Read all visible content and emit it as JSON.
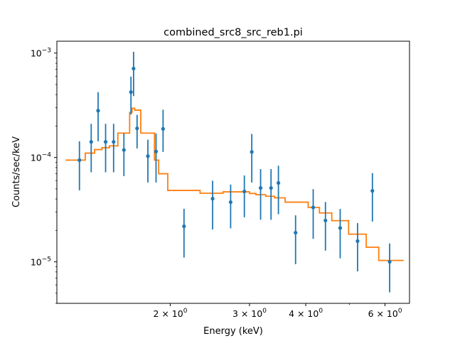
{
  "chart_data": {
    "type": "scatter",
    "title": "combined_src8_src_reb1.pi",
    "xlabel": "Energy (keV)",
    "ylabel": "Counts/sec/keV",
    "xscale": "log",
    "yscale": "log",
    "xlim": [
      1.12,
      6.8
    ],
    "ylim": [
      4e-06,
      0.0013
    ],
    "grid": false,
    "legend": "none",
    "x_ticks": [
      {
        "value": 2,
        "base": "2 × 10",
        "exp": "0"
      },
      {
        "value": 3,
        "base": "3 × 10",
        "exp": "0"
      },
      {
        "value": 4,
        "base": "4 × 10",
        "exp": "0"
      },
      {
        "value": 6,
        "base": "6 × 10",
        "exp": "0"
      }
    ],
    "y_ticks": [
      {
        "value": 0.001,
        "base": "10",
        "exp": "−3"
      },
      {
        "value": 0.0001,
        "base": "10",
        "exp": "−4"
      },
      {
        "value": 1e-05,
        "base": "10",
        "exp": "−5"
      }
    ],
    "colors": {
      "data": "#1f77b4",
      "model": "#ff7f0e"
    },
    "series": [
      {
        "kind": "errorbar",
        "points": [
          {
            "x": 1.257,
            "y": 9.43e-05,
            "ylo": 4.84e-05,
            "yhi": 0.000143
          },
          {
            "x": 1.335,
            "y": 0.000141,
            "ylo": 7.21e-05,
            "yhi": 0.00021
          },
          {
            "x": 1.383,
            "y": 0.000281,
            "ylo": 0.000143,
            "yhi": 0.000422
          },
          {
            "x": 1.437,
            "y": 0.000141,
            "ylo": 7.21e-05,
            "yhi": 0.00021
          },
          {
            "x": 1.497,
            "y": 0.000141,
            "ylo": 7.21e-05,
            "yhi": 0.00021
          },
          {
            "x": 1.578,
            "y": 0.000118,
            "ylo": 6.63e-05,
            "yhi": 0.00017
          },
          {
            "x": 1.636,
            "y": 0.000423,
            "ylo": 0.000258,
            "yhi": 0.000595
          },
          {
            "x": 1.658,
            "y": 0.000711,
            "ylo": 0.000387,
            "yhi": 0.00103
          },
          {
            "x": 1.688,
            "y": 0.00019,
            "ylo": 0.000122,
            "yhi": 0.000256
          },
          {
            "x": 1.784,
            "y": 0.000103,
            "ylo": 5.75e-05,
            "yhi": 0.000148
          },
          {
            "x": 1.86,
            "y": 0.000114,
            "ylo": 5.75e-05,
            "yhi": 0.00017
          },
          {
            "x": 1.928,
            "y": 0.000188,
            "ylo": 0.000113,
            "yhi": 0.000287
          },
          {
            "x": 2.146,
            "y": 2.19e-05,
            "ylo": 1.1e-05,
            "yhi": 3.22e-05
          },
          {
            "x": 2.484,
            "y": 4.03e-05,
            "ylo": 2.04e-05,
            "yhi": 5.99e-05
          },
          {
            "x": 2.724,
            "y": 3.73e-05,
            "ylo": 2.09e-05,
            "yhi": 5.5e-05
          },
          {
            "x": 2.922,
            "y": 4.72e-05,
            "ylo": 2.67e-05,
            "yhi": 6.72e-05
          },
          {
            "x": 3.035,
            "y": 0.000113,
            "ylo": 5.75e-05,
            "yhi": 0.000168
          },
          {
            "x": 3.175,
            "y": 5.1e-05,
            "ylo": 2.53e-05,
            "yhi": 7.74e-05
          },
          {
            "x": 3.349,
            "y": 5.1e-05,
            "ylo": 2.53e-05,
            "yhi": 7.74e-05
          },
          {
            "x": 3.478,
            "y": 5.7e-05,
            "ylo": 2.86e-05,
            "yhi": 8.33e-05
          },
          {
            "x": 3.797,
            "y": 1.9e-05,
            "ylo": 9.5e-06,
            "yhi": 2.79e-05
          },
          {
            "x": 4.155,
            "y": 3.32e-05,
            "ylo": 1.66e-05,
            "yhi": 4.97e-05
          },
          {
            "x": 4.424,
            "y": 2.49e-05,
            "ylo": 1.28e-05,
            "yhi": 3.74e-05
          },
          {
            "x": 4.77,
            "y": 2.11e-05,
            "ylo": 1.08e-05,
            "yhi": 3.21e-05
          },
          {
            "x": 5.214,
            "y": 1.58e-05,
            "ylo": 8.1e-06,
            "yhi": 2.35e-05
          },
          {
            "x": 5.625,
            "y": 4.79e-05,
            "ylo": 2.43e-05,
            "yhi": 7.09e-05
          },
          {
            "x": 6.144,
            "y": 1e-05,
            "ylo": 5.1e-06,
            "yhi": 1.5e-05
          }
        ]
      },
      {
        "kind": "step",
        "steps": [
          {
            "x0": 1.17,
            "x1": 1.295,
            "y": 9.43e-05
          },
          {
            "x0": 1.295,
            "x1": 1.358,
            "y": 0.00011
          },
          {
            "x0": 1.358,
            "x1": 1.41,
            "y": 0.000119
          },
          {
            "x0": 1.41,
            "x1": 1.465,
            "y": 0.000124
          },
          {
            "x0": 1.465,
            "x1": 1.53,
            "y": 0.000129
          },
          {
            "x0": 1.53,
            "x1": 1.625,
            "y": 0.000171
          },
          {
            "x0": 1.625,
            "x1": 1.645,
            "y": 0.00027
          },
          {
            "x0": 1.645,
            "x1": 1.668,
            "y": 0.000296
          },
          {
            "x0": 1.668,
            "x1": 1.72,
            "y": 0.000284
          },
          {
            "x0": 1.72,
            "x1": 1.845,
            "y": 0.000171
          },
          {
            "x0": 1.845,
            "x1": 1.885,
            "y": 9.43e-05
          },
          {
            "x0": 1.885,
            "x1": 1.975,
            "y": 6.98e-05
          },
          {
            "x0": 1.975,
            "x1": 2.33,
            "y": 4.83e-05
          },
          {
            "x0": 2.33,
            "x1": 2.62,
            "y": 4.54e-05
          },
          {
            "x0": 2.62,
            "x1": 2.84,
            "y": 4.68e-05
          },
          {
            "x0": 2.84,
            "x1": 3.0,
            "y": 4.68e-05
          },
          {
            "x0": 3.0,
            "x1": 3.1,
            "y": 4.52e-05
          },
          {
            "x0": 3.1,
            "x1": 3.26,
            "y": 4.39e-05
          },
          {
            "x0": 3.26,
            "x1": 3.41,
            "y": 4.25e-05
          },
          {
            "x0": 3.41,
            "x1": 3.6,
            "y": 4.1e-05
          },
          {
            "x0": 3.6,
            "x1": 4.05,
            "y": 3.73e-05
          },
          {
            "x0": 4.05,
            "x1": 4.29,
            "y": 3.32e-05
          },
          {
            "x0": 4.29,
            "x1": 4.57,
            "y": 2.94e-05
          },
          {
            "x0": 4.57,
            "x1": 4.98,
            "y": 2.48e-05
          },
          {
            "x0": 4.98,
            "x1": 5.45,
            "y": 1.84e-05
          },
          {
            "x0": 5.45,
            "x1": 5.81,
            "y": 1.38e-05
          },
          {
            "x0": 5.81,
            "x1": 6.6,
            "y": 1.03e-05
          }
        ]
      }
    ]
  }
}
